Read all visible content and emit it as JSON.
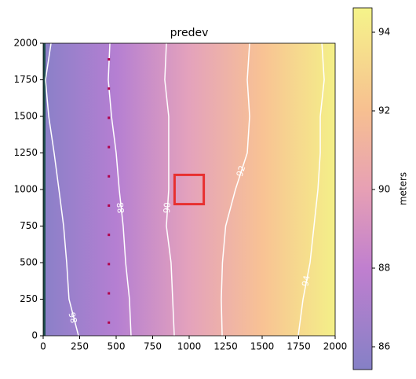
{
  "chart_data": {
    "type": "contour",
    "title": "predev",
    "xlim": [
      0,
      2000
    ],
    "ylim": [
      0,
      2000
    ],
    "xticks": [
      0,
      250,
      500,
      750,
      1000,
      1250,
      1500,
      1750,
      2000
    ],
    "yticks": [
      0,
      250,
      500,
      750,
      1000,
      1250,
      1500,
      1750,
      2000
    ],
    "contours": [
      {
        "level": 86,
        "color": "#ffffff",
        "x": [
          54,
          16,
          38,
          75,
          108,
          140,
          161,
          177,
          242
        ],
        "y": [
          2000,
          1750,
          1500,
          1250,
          1000,
          750,
          500,
          250,
          0
        ]
      },
      {
        "level": 88,
        "color": "#ffffff",
        "x": [
          457,
          446,
          468,
          500,
          521,
          548,
          565,
          591,
          602
        ],
        "y": [
          2000,
          1750,
          1500,
          1250,
          1000,
          750,
          500,
          250,
          0
        ]
      },
      {
        "level": 90,
        "color": "#ffffff",
        "x": [
          844,
          833,
          860,
          860,
          860,
          844,
          876,
          887,
          898
        ],
        "y": [
          2000,
          1750,
          1500,
          1250,
          1000,
          750,
          500,
          250,
          0
        ]
      },
      {
        "level": 92,
        "color": "#ffffff",
        "x": [
          1414,
          1398,
          1414,
          1398,
          1317,
          1250,
          1228,
          1220,
          1226
        ],
        "y": [
          2000,
          1750,
          1500,
          1250,
          1000,
          750,
          500,
          250,
          0
        ]
      },
      {
        "level": 94,
        "color": "#ffffff",
        "x": [
          1909,
          1925,
          1898,
          1898,
          1882,
          1855,
          1828,
          1780,
          1747
        ],
        "y": [
          2000,
          1750,
          1500,
          1250,
          1000,
          750,
          500,
          250,
          0
        ]
      }
    ],
    "markers": {
      "color": "#b0004a",
      "x": [
        450,
        450,
        450,
        450,
        450,
        450,
        450,
        450,
        450,
        450
      ],
      "y": [
        1890,
        1690,
        1490,
        1290,
        1090,
        890,
        690,
        490,
        290,
        90
      ]
    },
    "rectangle": {
      "color": "#e83030",
      "x": [
        900,
        1100
      ],
      "y": [
        900,
        1100
      ]
    },
    "colorbar": {
      "label": "meters",
      "lim": [
        85.42,
        94.62
      ],
      "ticks": [
        86,
        88,
        90,
        92,
        94
      ]
    }
  }
}
